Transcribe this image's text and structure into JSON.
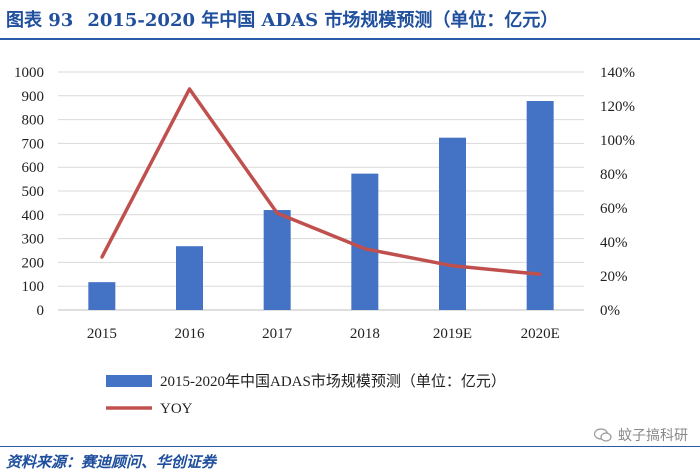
{
  "header": {
    "figure_label": "图表 93",
    "title": "2015-2020 年中国 ADAS 市场规模预测（单位：亿元）"
  },
  "colors": {
    "bar": "#4472c4",
    "line": "#c0504d",
    "title": "#1f4f9d",
    "grid": "#d9d9d9"
  },
  "chart_data": {
    "type": "bar",
    "categories": [
      "2015",
      "2016",
      "2017",
      "2018",
      "2019E",
      "2020E"
    ],
    "series": [
      {
        "name": "2015-2020年中国ADAS市场规模预测（单位：亿元）",
        "type": "bar",
        "axis": "left",
        "values": [
          117,
          268,
          420,
          573,
          724,
          878
        ]
      },
      {
        "name": "YOY",
        "type": "line",
        "axis": "right",
        "values": [
          0.31,
          1.3,
          0.57,
          0.36,
          0.26,
          0.21
        ]
      }
    ],
    "left_axis": {
      "min": 0,
      "max": 1000,
      "step": 100,
      "tick_labels": [
        "0",
        "100",
        "200",
        "300",
        "400",
        "500",
        "600",
        "700",
        "800",
        "900",
        "1000"
      ]
    },
    "right_axis": {
      "min": 0,
      "max": 1.4,
      "step": 0.2,
      "tick_labels": [
        "0%",
        "20%",
        "40%",
        "60%",
        "80%",
        "100%",
        "120%",
        "140%"
      ]
    },
    "legend": [
      "2015-2020年中国ADAS市场规模预测（单位：亿元）",
      "YOY"
    ],
    "legend_position": "bottom",
    "grid": true
  },
  "footer": {
    "source": "资料来源：赛迪顾问、华创证券",
    "watermark": "蚊子搞科研"
  }
}
